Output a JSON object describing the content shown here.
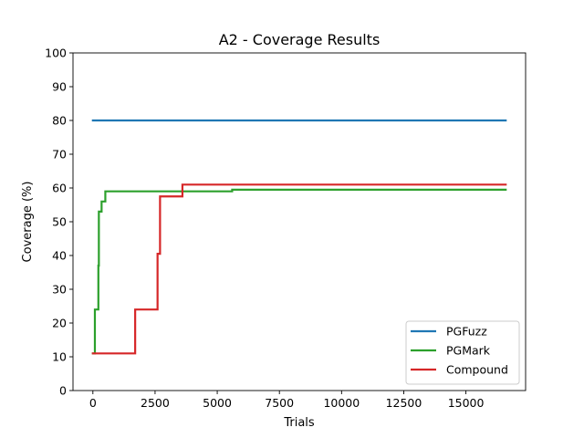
{
  "chart_data": {
    "type": "line",
    "title": "A2 - Coverage Results",
    "xlabel": "Trials",
    "ylabel": "Coverage (%)",
    "xlim": [
      -800,
      17400
    ],
    "ylim": [
      0,
      100
    ],
    "xticks": [
      0,
      2500,
      5000,
      7500,
      10000,
      12500,
      15000
    ],
    "xtick_labels": [
      "0",
      "2500",
      "5000",
      "7500",
      "10000",
      "12500",
      "15000"
    ],
    "yticks": [
      0,
      10,
      20,
      30,
      40,
      50,
      60,
      70,
      80,
      90,
      100
    ],
    "ytick_labels": [
      "0",
      "10",
      "20",
      "30",
      "40",
      "50",
      "60",
      "70",
      "80",
      "90",
      "100"
    ],
    "grid": false,
    "legend_position": "lower-right",
    "series": [
      {
        "name": "PGFuzz",
        "color": "#1f77b4",
        "step": true,
        "points": [
          [
            0,
            80
          ],
          [
            16600,
            80
          ]
        ]
      },
      {
        "name": "PGMark",
        "color": "#2ca02c",
        "step": true,
        "points": [
          [
            0,
            11
          ],
          [
            80,
            24
          ],
          [
            220,
            37
          ],
          [
            240,
            53
          ],
          [
            350,
            56
          ],
          [
            500,
            59
          ],
          [
            5600,
            59.5
          ],
          [
            16600,
            59.5
          ]
        ]
      },
      {
        "name": "Compound",
        "color": "#d62728",
        "step": true,
        "points": [
          [
            0,
            11
          ],
          [
            1700,
            24
          ],
          [
            2600,
            40.5
          ],
          [
            2700,
            57.5
          ],
          [
            3600,
            61
          ],
          [
            16600,
            61
          ]
        ]
      }
    ]
  }
}
